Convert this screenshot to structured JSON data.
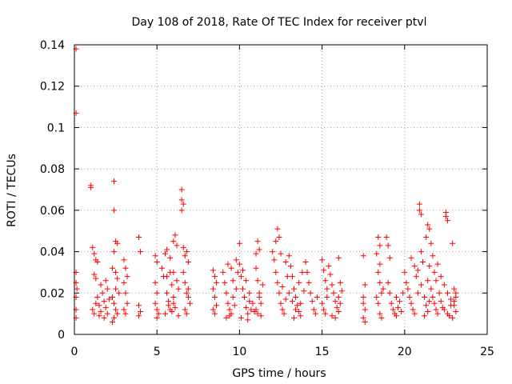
{
  "chart_data": {
    "type": "scatter",
    "title": "Day 108 of 2018, Rate Of TEC Index for receiver ptvl",
    "xlabel": "GPS time / hours",
    "ylabel": "ROTI / TECUs",
    "xlim": [
      0,
      25
    ],
    "ylim": [
      0,
      0.14
    ],
    "xticks": [
      0,
      5,
      10,
      15,
      20,
      25
    ],
    "xtick_labels": [
      "0",
      "5",
      "10",
      "15",
      "20",
      "25"
    ],
    "yticks": [
      0,
      0.02,
      0.04,
      0.06,
      0.08,
      0.1,
      0.12,
      0.14
    ],
    "ytick_labels": [
      "0",
      "0.02",
      "0.04",
      "0.06",
      "0.08",
      "0.1",
      "0.12",
      "0.14"
    ],
    "grid": true,
    "marker": "+",
    "marker_color": "#ff0000",
    "series": [
      {
        "name": "ROTI",
        "points": [
          [
            0.1,
            0.138
          ],
          [
            0.1,
            0.107
          ],
          [
            0.1,
            0.03
          ],
          [
            0.1,
            0.025
          ],
          [
            0.1,
            0.018
          ],
          [
            0.1,
            0.012
          ],
          [
            0.1,
            0.008
          ],
          [
            0.15,
            0.022
          ],
          [
            1.0,
            0.072
          ],
          [
            1.0,
            0.071
          ],
          [
            1.1,
            0.042
          ],
          [
            1.2,
            0.039
          ],
          [
            1.3,
            0.036
          ],
          [
            1.2,
            0.029
          ],
          [
            1.3,
            0.027
          ],
          [
            1.4,
            0.035
          ],
          [
            1.1,
            0.012
          ],
          [
            1.2,
            0.01
          ],
          [
            1.3,
            0.015
          ],
          [
            1.4,
            0.018
          ],
          [
            1.5,
            0.014
          ],
          [
            1.6,
            0.011
          ],
          [
            1.7,
            0.02
          ],
          [
            1.8,
            0.016
          ],
          [
            1.9,
            0.013
          ],
          [
            2.0,
            0.022
          ],
          [
            2.1,
            0.017
          ],
          [
            1.5,
            0.009
          ],
          [
            1.8,
            0.008
          ],
          [
            2.0,
            0.01
          ],
          [
            1.6,
            0.024
          ],
          [
            1.9,
            0.026
          ],
          [
            2.4,
            0.074
          ],
          [
            2.4,
            0.06
          ],
          [
            2.5,
            0.045
          ],
          [
            2.6,
            0.044
          ],
          [
            2.4,
            0.04
          ],
          [
            2.3,
            0.032
          ],
          [
            2.5,
            0.03
          ],
          [
            2.6,
            0.027
          ],
          [
            2.3,
            0.018
          ],
          [
            2.4,
            0.015
          ],
          [
            2.5,
            0.012
          ],
          [
            2.6,
            0.01
          ],
          [
            2.4,
            0.008
          ],
          [
            2.3,
            0.006
          ],
          [
            2.7,
            0.02
          ],
          [
            2.5,
            0.022
          ],
          [
            3.0,
            0.036
          ],
          [
            3.1,
            0.032
          ],
          [
            3.0,
            0.025
          ],
          [
            3.1,
            0.02
          ],
          [
            3.2,
            0.015
          ],
          [
            3.0,
            0.012
          ],
          [
            3.1,
            0.01
          ],
          [
            3.2,
            0.028
          ],
          [
            3.9,
            0.047
          ],
          [
            4.0,
            0.04
          ],
          [
            3.9,
            0.014
          ],
          [
            4.0,
            0.011
          ],
          [
            3.9,
            0.009
          ],
          [
            4.9,
            0.038
          ],
          [
            5.0,
            0.035
          ],
          [
            4.9,
            0.025
          ],
          [
            5.0,
            0.02
          ],
          [
            4.9,
            0.015
          ],
          [
            5.0,
            0.012
          ],
          [
            5.1,
            0.01
          ],
          [
            5.0,
            0.008
          ],
          [
            5.3,
            0.032
          ],
          [
            5.4,
            0.028
          ],
          [
            5.5,
            0.039
          ],
          [
            5.6,
            0.02
          ],
          [
            5.7,
            0.016
          ],
          [
            5.8,
            0.012
          ],
          [
            5.9,
            0.024
          ],
          [
            6.0,
            0.018
          ],
          [
            5.6,
            0.041
          ],
          [
            5.8,
            0.037
          ],
          [
            6.0,
            0.045
          ],
          [
            6.1,
            0.048
          ],
          [
            6.2,
            0.043
          ],
          [
            6.0,
            0.03
          ],
          [
            6.2,
            0.026
          ],
          [
            6.3,
            0.022
          ],
          [
            5.5,
            0.01
          ],
          [
            5.7,
            0.014
          ],
          [
            5.9,
            0.011
          ],
          [
            6.1,
            0.013
          ],
          [
            6.3,
            0.009
          ],
          [
            6.0,
            0.015
          ],
          [
            5.6,
            0.028
          ],
          [
            5.8,
            0.03
          ],
          [
            6.5,
            0.07
          ],
          [
            6.5,
            0.065
          ],
          [
            6.6,
            0.063
          ],
          [
            6.5,
            0.06
          ],
          [
            6.6,
            0.042
          ],
          [
            6.7,
            0.038
          ],
          [
            6.8,
            0.04
          ],
          [
            6.9,
            0.035
          ],
          [
            6.6,
            0.03
          ],
          [
            6.7,
            0.025
          ],
          [
            6.8,
            0.02
          ],
          [
            6.9,
            0.018
          ],
          [
            7.0,
            0.015
          ],
          [
            6.7,
            0.012
          ],
          [
            6.8,
            0.01
          ],
          [
            6.9,
            0.022
          ],
          [
            8.4,
            0.031
          ],
          [
            8.5,
            0.028
          ],
          [
            8.4,
            0.022
          ],
          [
            8.5,
            0.018
          ],
          [
            8.6,
            0.014
          ],
          [
            8.4,
            0.012
          ],
          [
            8.5,
            0.01
          ],
          [
            8.6,
            0.025
          ],
          [
            9.0,
            0.03
          ],
          [
            9.1,
            0.025
          ],
          [
            9.2,
            0.02
          ],
          [
            9.3,
            0.015
          ],
          [
            9.4,
            0.012
          ],
          [
            9.5,
            0.01
          ],
          [
            9.6,
            0.018
          ],
          [
            9.7,
            0.014
          ],
          [
            9.3,
            0.034
          ],
          [
            9.5,
            0.032
          ],
          [
            9.8,
            0.036
          ],
          [
            9.9,
            0.03
          ],
          [
            9.2,
            0.008
          ],
          [
            9.4,
            0.009
          ],
          [
            9.6,
            0.026
          ],
          [
            9.8,
            0.022
          ],
          [
            10.0,
            0.044
          ],
          [
            10.1,
            0.028
          ],
          [
            10.2,
            0.022
          ],
          [
            10.3,
            0.018
          ],
          [
            10.4,
            0.013
          ],
          [
            10.5,
            0.01
          ],
          [
            10.6,
            0.016
          ],
          [
            10.7,
            0.012
          ],
          [
            10.0,
            0.034
          ],
          [
            10.2,
            0.031
          ],
          [
            10.4,
            0.026
          ],
          [
            10.6,
            0.02
          ],
          [
            10.8,
            0.015
          ],
          [
            10.9,
            0.011
          ],
          [
            10.1,
            0.008
          ],
          [
            10.5,
            0.007
          ],
          [
            11.0,
            0.039
          ],
          [
            11.1,
            0.045
          ],
          [
            11.2,
            0.041
          ],
          [
            11.0,
            0.032
          ],
          [
            11.1,
            0.026
          ],
          [
            11.2,
            0.02
          ],
          [
            11.3,
            0.015
          ],
          [
            11.1,
            0.01
          ],
          [
            11.0,
            0.012
          ],
          [
            11.2,
            0.018
          ],
          [
            11.4,
            0.024
          ],
          [
            11.3,
            0.009
          ],
          [
            12.0,
            0.04
          ],
          [
            12.1,
            0.036
          ],
          [
            12.2,
            0.03
          ],
          [
            12.3,
            0.025
          ],
          [
            12.4,
            0.02
          ],
          [
            12.5,
            0.015
          ],
          [
            12.6,
            0.012
          ],
          [
            12.7,
            0.01
          ],
          [
            12.3,
            0.051
          ],
          [
            12.4,
            0.047
          ],
          [
            12.2,
            0.045
          ],
          [
            12.5,
            0.039
          ],
          [
            12.8,
            0.035
          ],
          [
            12.9,
            0.028
          ],
          [
            12.6,
            0.023
          ],
          [
            12.8,
            0.017
          ],
          [
            13.0,
            0.038
          ],
          [
            13.1,
            0.033
          ],
          [
            13.2,
            0.028
          ],
          [
            13.3,
            0.022
          ],
          [
            13.4,
            0.018
          ],
          [
            13.5,
            0.014
          ],
          [
            13.6,
            0.011
          ],
          [
            13.7,
            0.009
          ],
          [
            13.0,
            0.02
          ],
          [
            13.2,
            0.016
          ],
          [
            13.4,
            0.012
          ],
          [
            13.6,
            0.025
          ],
          [
            13.8,
            0.03
          ],
          [
            13.9,
            0.021
          ],
          [
            13.3,
            0.008
          ],
          [
            13.7,
            0.015
          ],
          [
            14.0,
            0.035
          ],
          [
            14.1,
            0.03
          ],
          [
            14.2,
            0.025
          ],
          [
            14.3,
            0.02
          ],
          [
            14.4,
            0.016
          ],
          [
            14.5,
            0.012
          ],
          [
            14.6,
            0.01
          ],
          [
            14.7,
            0.018
          ],
          [
            15.0,
            0.036
          ],
          [
            15.1,
            0.031
          ],
          [
            15.2,
            0.026
          ],
          [
            15.3,
            0.022
          ],
          [
            15.0,
            0.015
          ],
          [
            15.1,
            0.012
          ],
          [
            15.2,
            0.01
          ],
          [
            15.3,
            0.018
          ],
          [
            15.4,
            0.033
          ],
          [
            15.5,
            0.029
          ],
          [
            15.6,
            0.024
          ],
          [
            15.7,
            0.02
          ],
          [
            15.8,
            0.016
          ],
          [
            15.9,
            0.013
          ],
          [
            16.0,
            0.011
          ],
          [
            16.1,
            0.015
          ],
          [
            16.0,
            0.037
          ],
          [
            16.1,
            0.025
          ],
          [
            16.2,
            0.021
          ],
          [
            15.6,
            0.009
          ],
          [
            15.8,
            0.008
          ],
          [
            16.0,
            0.018
          ],
          [
            17.5,
            0.038
          ],
          [
            17.6,
            0.024
          ],
          [
            17.5,
            0.018
          ],
          [
            17.6,
            0.012
          ],
          [
            17.5,
            0.008
          ],
          [
            17.6,
            0.006
          ],
          [
            17.5,
            0.015
          ],
          [
            18.4,
            0.047
          ],
          [
            18.5,
            0.043
          ],
          [
            18.3,
            0.039
          ],
          [
            18.4,
            0.03
          ],
          [
            18.5,
            0.025
          ],
          [
            18.6,
            0.02
          ],
          [
            18.4,
            0.015
          ],
          [
            18.5,
            0.01
          ],
          [
            18.6,
            0.008
          ],
          [
            18.3,
            0.018
          ],
          [
            18.5,
            0.034
          ],
          [
            18.7,
            0.022
          ],
          [
            18.9,
            0.047
          ],
          [
            19.0,
            0.043
          ],
          [
            19.1,
            0.037
          ],
          [
            19.0,
            0.025
          ],
          [
            19.1,
            0.02
          ],
          [
            19.2,
            0.015
          ],
          [
            19.3,
            0.012
          ],
          [
            19.4,
            0.01
          ],
          [
            19.5,
            0.018
          ],
          [
            19.6,
            0.013
          ],
          [
            19.7,
            0.016
          ],
          [
            19.8,
            0.011
          ],
          [
            19.9,
            0.02
          ],
          [
            19.5,
            0.009
          ],
          [
            20.0,
            0.03
          ],
          [
            20.1,
            0.025
          ],
          [
            20.2,
            0.022
          ],
          [
            20.3,
            0.018
          ],
          [
            20.4,
            0.015
          ],
          [
            20.5,
            0.012
          ],
          [
            20.6,
            0.01
          ],
          [
            20.7,
            0.028
          ],
          [
            20.4,
            0.037
          ],
          [
            20.6,
            0.033
          ],
          [
            20.8,
            0.031
          ],
          [
            20.9,
            0.063
          ],
          [
            20.9,
            0.06
          ],
          [
            21.0,
            0.058
          ],
          [
            21.0,
            0.04
          ],
          [
            21.1,
            0.035
          ],
          [
            20.8,
            0.02
          ],
          [
            21.0,
            0.024
          ],
          [
            21.2,
            0.018
          ],
          [
            21.3,
            0.014
          ],
          [
            21.4,
            0.011
          ],
          [
            21.5,
            0.016
          ],
          [
            21.2,
            0.009
          ],
          [
            21.4,
            0.026
          ],
          [
            21.4,
            0.053
          ],
          [
            21.5,
            0.051
          ],
          [
            21.3,
            0.047
          ],
          [
            21.6,
            0.044
          ],
          [
            21.7,
            0.038
          ],
          [
            21.5,
            0.033
          ],
          [
            21.8,
            0.03
          ],
          [
            21.9,
            0.026
          ],
          [
            21.6,
            0.022
          ],
          [
            21.7,
            0.018
          ],
          [
            21.8,
            0.015
          ],
          [
            21.9,
            0.012
          ],
          [
            22.0,
            0.01
          ],
          [
            22.1,
            0.02
          ],
          [
            22.2,
            0.016
          ],
          [
            22.3,
            0.013
          ],
          [
            22.0,
            0.034
          ],
          [
            22.2,
            0.028
          ],
          [
            22.4,
            0.024
          ],
          [
            22.6,
            0.02
          ],
          [
            22.8,
            0.017
          ],
          [
            22.4,
            0.012
          ],
          [
            22.6,
            0.01
          ],
          [
            22.8,
            0.014
          ],
          [
            22.5,
            0.059
          ],
          [
            22.5,
            0.057
          ],
          [
            22.6,
            0.055
          ],
          [
            22.9,
            0.044
          ],
          [
            23.0,
            0.022
          ],
          [
            23.1,
            0.018
          ],
          [
            23.0,
            0.014
          ],
          [
            23.1,
            0.011
          ],
          [
            22.9,
            0.008
          ],
          [
            23.0,
            0.016
          ],
          [
            22.7,
            0.009
          ],
          [
            23.1,
            0.02
          ]
        ]
      }
    ]
  }
}
